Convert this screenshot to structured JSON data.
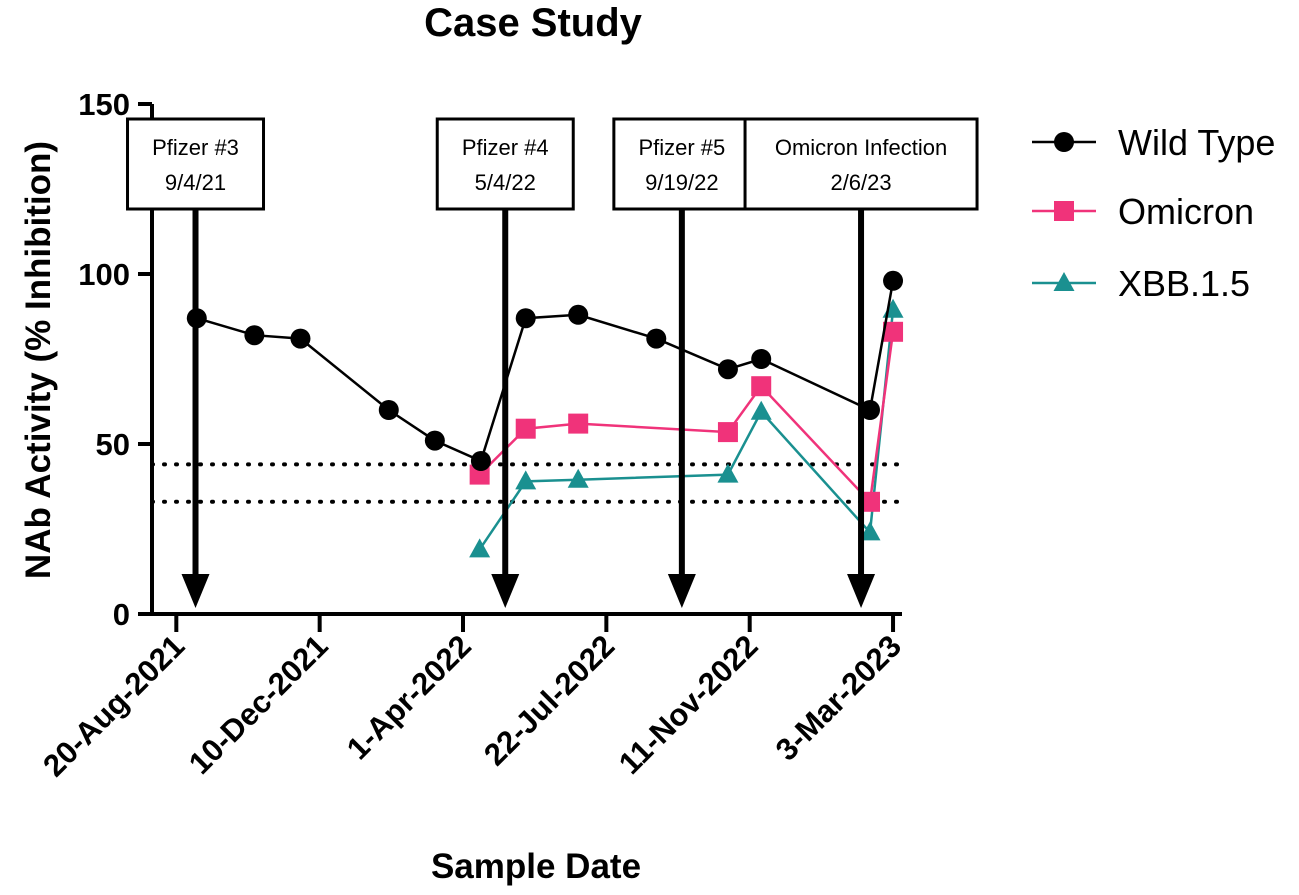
{
  "chart_data": {
    "type": "line",
    "title": "Case Study",
    "xlabel": "Sample Date",
    "ylabel": "NAb Activity (% Inhibition)",
    "ylim": [
      0,
      150
    ],
    "yticks": [
      0,
      50,
      100,
      150
    ],
    "xlim": [
      "2021-08-01",
      "2023-03-10"
    ],
    "xticks": [
      {
        "label": "20-Aug-2021",
        "date": "2021-08-20"
      },
      {
        "label": "10-Dec-2021",
        "date": "2021-12-10"
      },
      {
        "label": "1-Apr-2022",
        "date": "2022-04-01"
      },
      {
        "label": "22-Jul-2022",
        "date": "2022-07-22"
      },
      {
        "label": "11-Nov-2022",
        "date": "2022-11-11"
      },
      {
        "label": "3-Mar-2023",
        "date": "2023-03-03"
      }
    ],
    "reference_lines": [
      44,
      33
    ],
    "series": [
      {
        "name": "Wild Type",
        "color": "#000000",
        "marker": "circle",
        "points": [
          {
            "date": "2021-09-05",
            "value": 87
          },
          {
            "date": "2021-10-20",
            "value": 82
          },
          {
            "date": "2021-11-25",
            "value": 81
          },
          {
            "date": "2022-02-02",
            "value": 60
          },
          {
            "date": "2022-03-10",
            "value": 51
          },
          {
            "date": "2022-04-15",
            "value": 45
          },
          {
            "date": "2022-05-20",
            "value": 87
          },
          {
            "date": "2022-06-30",
            "value": 88
          },
          {
            "date": "2022-08-30",
            "value": 81
          },
          {
            "date": "2022-10-25",
            "value": 72
          },
          {
            "date": "2022-11-20",
            "value": 75
          },
          {
            "date": "2023-02-13",
            "value": 60
          },
          {
            "date": "2023-03-03",
            "value": 98
          }
        ]
      },
      {
        "name": "Omicron",
        "color": "#f0337a",
        "marker": "square",
        "points": [
          {
            "date": "2022-04-14",
            "value": 41
          },
          {
            "date": "2022-05-20",
            "value": 54.5
          },
          {
            "date": "2022-06-30",
            "value": 56
          },
          {
            "date": "2022-10-25",
            "value": 53.5
          },
          {
            "date": "2022-11-20",
            "value": 67
          },
          {
            "date": "2023-02-13",
            "value": 33
          },
          {
            "date": "2023-03-03",
            "value": 83
          }
        ]
      },
      {
        "name": "XBB.1.5",
        "color": "#1a9090",
        "marker": "triangle",
        "points": [
          {
            "date": "2022-04-14",
            "value": 19
          },
          {
            "date": "2022-05-20",
            "value": 39
          },
          {
            "date": "2022-06-30",
            "value": 39.5
          },
          {
            "date": "2022-10-25",
            "value": 41
          },
          {
            "date": "2022-11-20",
            "value": 59.5
          },
          {
            "date": "2023-02-13",
            "value": 24
          },
          {
            "date": "2023-03-03",
            "value": 89.5
          }
        ]
      }
    ],
    "annotations": [
      {
        "line1": "Pfizer #3",
        "line2": "9/4/21",
        "date": "2021-09-04"
      },
      {
        "line1": "Pfizer #4",
        "line2": "5/4/22",
        "date": "2022-05-04"
      },
      {
        "line1": "Pfizer #5",
        "line2": "9/19/22",
        "date": "2022-09-19"
      },
      {
        "line1": "Omicron Infection",
        "line2": "2/6/23",
        "date": "2023-02-06"
      }
    ],
    "legend_position": "top-right"
  }
}
